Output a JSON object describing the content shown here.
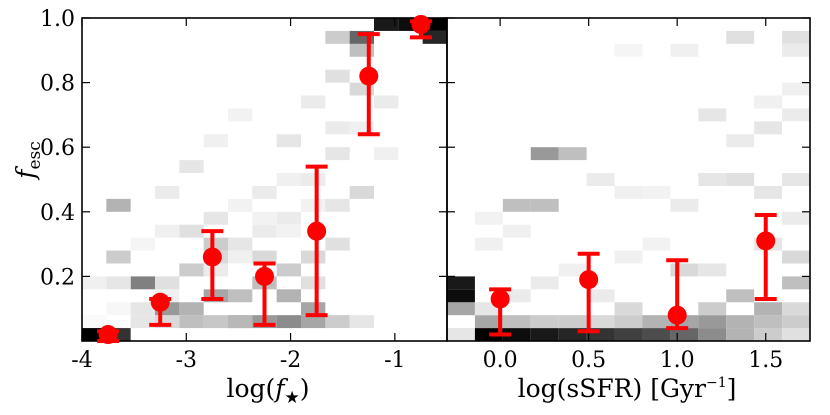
{
  "chart_data": [
    {
      "type": "scatter",
      "panel": "left",
      "xlabel": "log(f_★)",
      "xlabel_text": "log(",
      "xlabel_var": "f",
      "xlabel_sub": "★",
      "xlabel_close": ")",
      "ylabel_var": "f",
      "ylabel_sub": "esc",
      "xlim": [
        -4.0,
        -0.5
      ],
      "ylim": [
        0.0,
        1.0
      ],
      "xticks": [
        -4,
        -3,
        -2,
        -1
      ],
      "xtick_labels": [
        "-4",
        "-3",
        "-2",
        "-1"
      ],
      "yticks": [
        0.2,
        0.4,
        0.6,
        0.8,
        1.0
      ],
      "ytick_labels": [
        "0.2",
        "0.4",
        "0.6",
        "0.8",
        "1.0"
      ],
      "background": "2D histogram (grayscale density)",
      "points": [
        {
          "x": -3.75,
          "y": 0.02,
          "lo": 0.0,
          "hi": 0.03
        },
        {
          "x": -3.25,
          "y": 0.12,
          "lo": 0.05,
          "hi": 0.13
        },
        {
          "x": -2.75,
          "y": 0.26,
          "lo": 0.13,
          "hi": 0.34
        },
        {
          "x": -2.25,
          "y": 0.2,
          "lo": 0.05,
          "hi": 0.24
        },
        {
          "x": -1.75,
          "y": 0.34,
          "lo": 0.08,
          "hi": 0.54
        },
        {
          "x": -1.25,
          "y": 0.82,
          "lo": 0.64,
          "hi": 0.95
        },
        {
          "x": -0.75,
          "y": 0.98,
          "lo": 0.94,
          "hi": 0.99
        }
      ]
    },
    {
      "type": "scatter",
      "panel": "right",
      "xlabel": "log(sSFR) [Gyr^-1]",
      "xlabel_text": "log(sSFR) [Gyr",
      "xlabel_sup": "−1",
      "xlabel_close": "]",
      "xlim": [
        -0.3,
        1.75
      ],
      "ylim": [
        0.0,
        1.0
      ],
      "xticks": [
        0.0,
        0.5,
        1.0,
        1.5
      ],
      "xtick_labels": [
        "0.0",
        "0.5",
        "1.0",
        "1.5"
      ],
      "background": "2D histogram (grayscale density)",
      "points": [
        {
          "x": 0.0,
          "y": 0.13,
          "lo": 0.02,
          "hi": 0.16
        },
        {
          "x": 0.5,
          "y": 0.19,
          "lo": 0.03,
          "hi": 0.27
        },
        {
          "x": 1.0,
          "y": 0.08,
          "lo": 0.04,
          "hi": 0.25
        },
        {
          "x": 1.5,
          "y": 0.31,
          "lo": 0.13,
          "hi": 0.39
        }
      ]
    }
  ],
  "colors": {
    "points": "#ff0000",
    "axes": "#000000"
  }
}
